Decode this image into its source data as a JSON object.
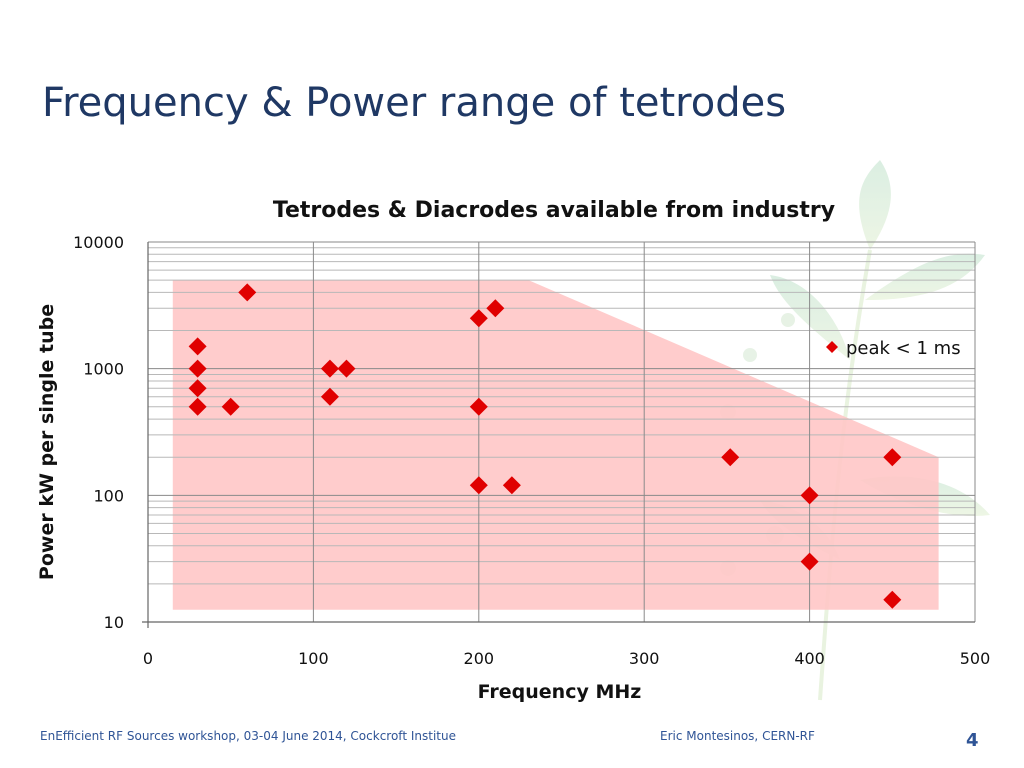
{
  "slide": {
    "title": "Frequency & Power range of tetrodes",
    "footer_left": "EnEfficient RF Sources workshop, 03-04 June 2014, Cockcroft Institue",
    "footer_right": "Eric Montesinos, CERN-RF",
    "page_number": "4"
  },
  "colors": {
    "title": "#1f3864",
    "marker": "#e00000",
    "region": "#ffc7c7",
    "footer": "#2f5496"
  },
  "chart_data": {
    "type": "scatter",
    "title": "Tetrodes & Diacrodes available from industry",
    "xlabel": "Frequency MHz",
    "ylabel": "Power kW per single tube",
    "xlim": [
      0,
      500
    ],
    "ylim": [
      10,
      10000
    ],
    "yscale": "log",
    "x_ticks": [
      "0",
      "100",
      "200",
      "300",
      "400",
      "500"
    ],
    "y_ticks": [
      "10",
      "100",
      "1000",
      "10000"
    ],
    "grid": true,
    "legend": "right",
    "series": [
      {
        "name": "peak < 1 ms",
        "marker": "diamond",
        "points": [
          {
            "x": 30,
            "y": 1500
          },
          {
            "x": 30,
            "y": 1000
          },
          {
            "x": 30,
            "y": 700
          },
          {
            "x": 30,
            "y": 500
          },
          {
            "x": 50,
            "y": 500
          },
          {
            "x": 60,
            "y": 4000
          },
          {
            "x": 110,
            "y": 1000
          },
          {
            "x": 120,
            "y": 1000
          },
          {
            "x": 110,
            "y": 600
          },
          {
            "x": 200,
            "y": 2500
          },
          {
            "x": 210,
            "y": 3000
          },
          {
            "x": 200,
            "y": 500
          },
          {
            "x": 200,
            "y": 120
          },
          {
            "x": 220,
            "y": 120
          },
          {
            "x": 352,
            "y": 200
          },
          {
            "x": 400,
            "y": 100
          },
          {
            "x": 400,
            "y": 30
          },
          {
            "x": 450,
            "y": 200
          },
          {
            "x": 450,
            "y": 15
          }
        ]
      }
    ],
    "shaded_region": [
      {
        "x": 15,
        "y": 5000
      },
      {
        "x": 230,
        "y": 5000
      },
      {
        "x": 478,
        "y": 200
      },
      {
        "x": 478,
        "y": 12.5
      },
      {
        "x": 15,
        "y": 12.5
      }
    ]
  }
}
